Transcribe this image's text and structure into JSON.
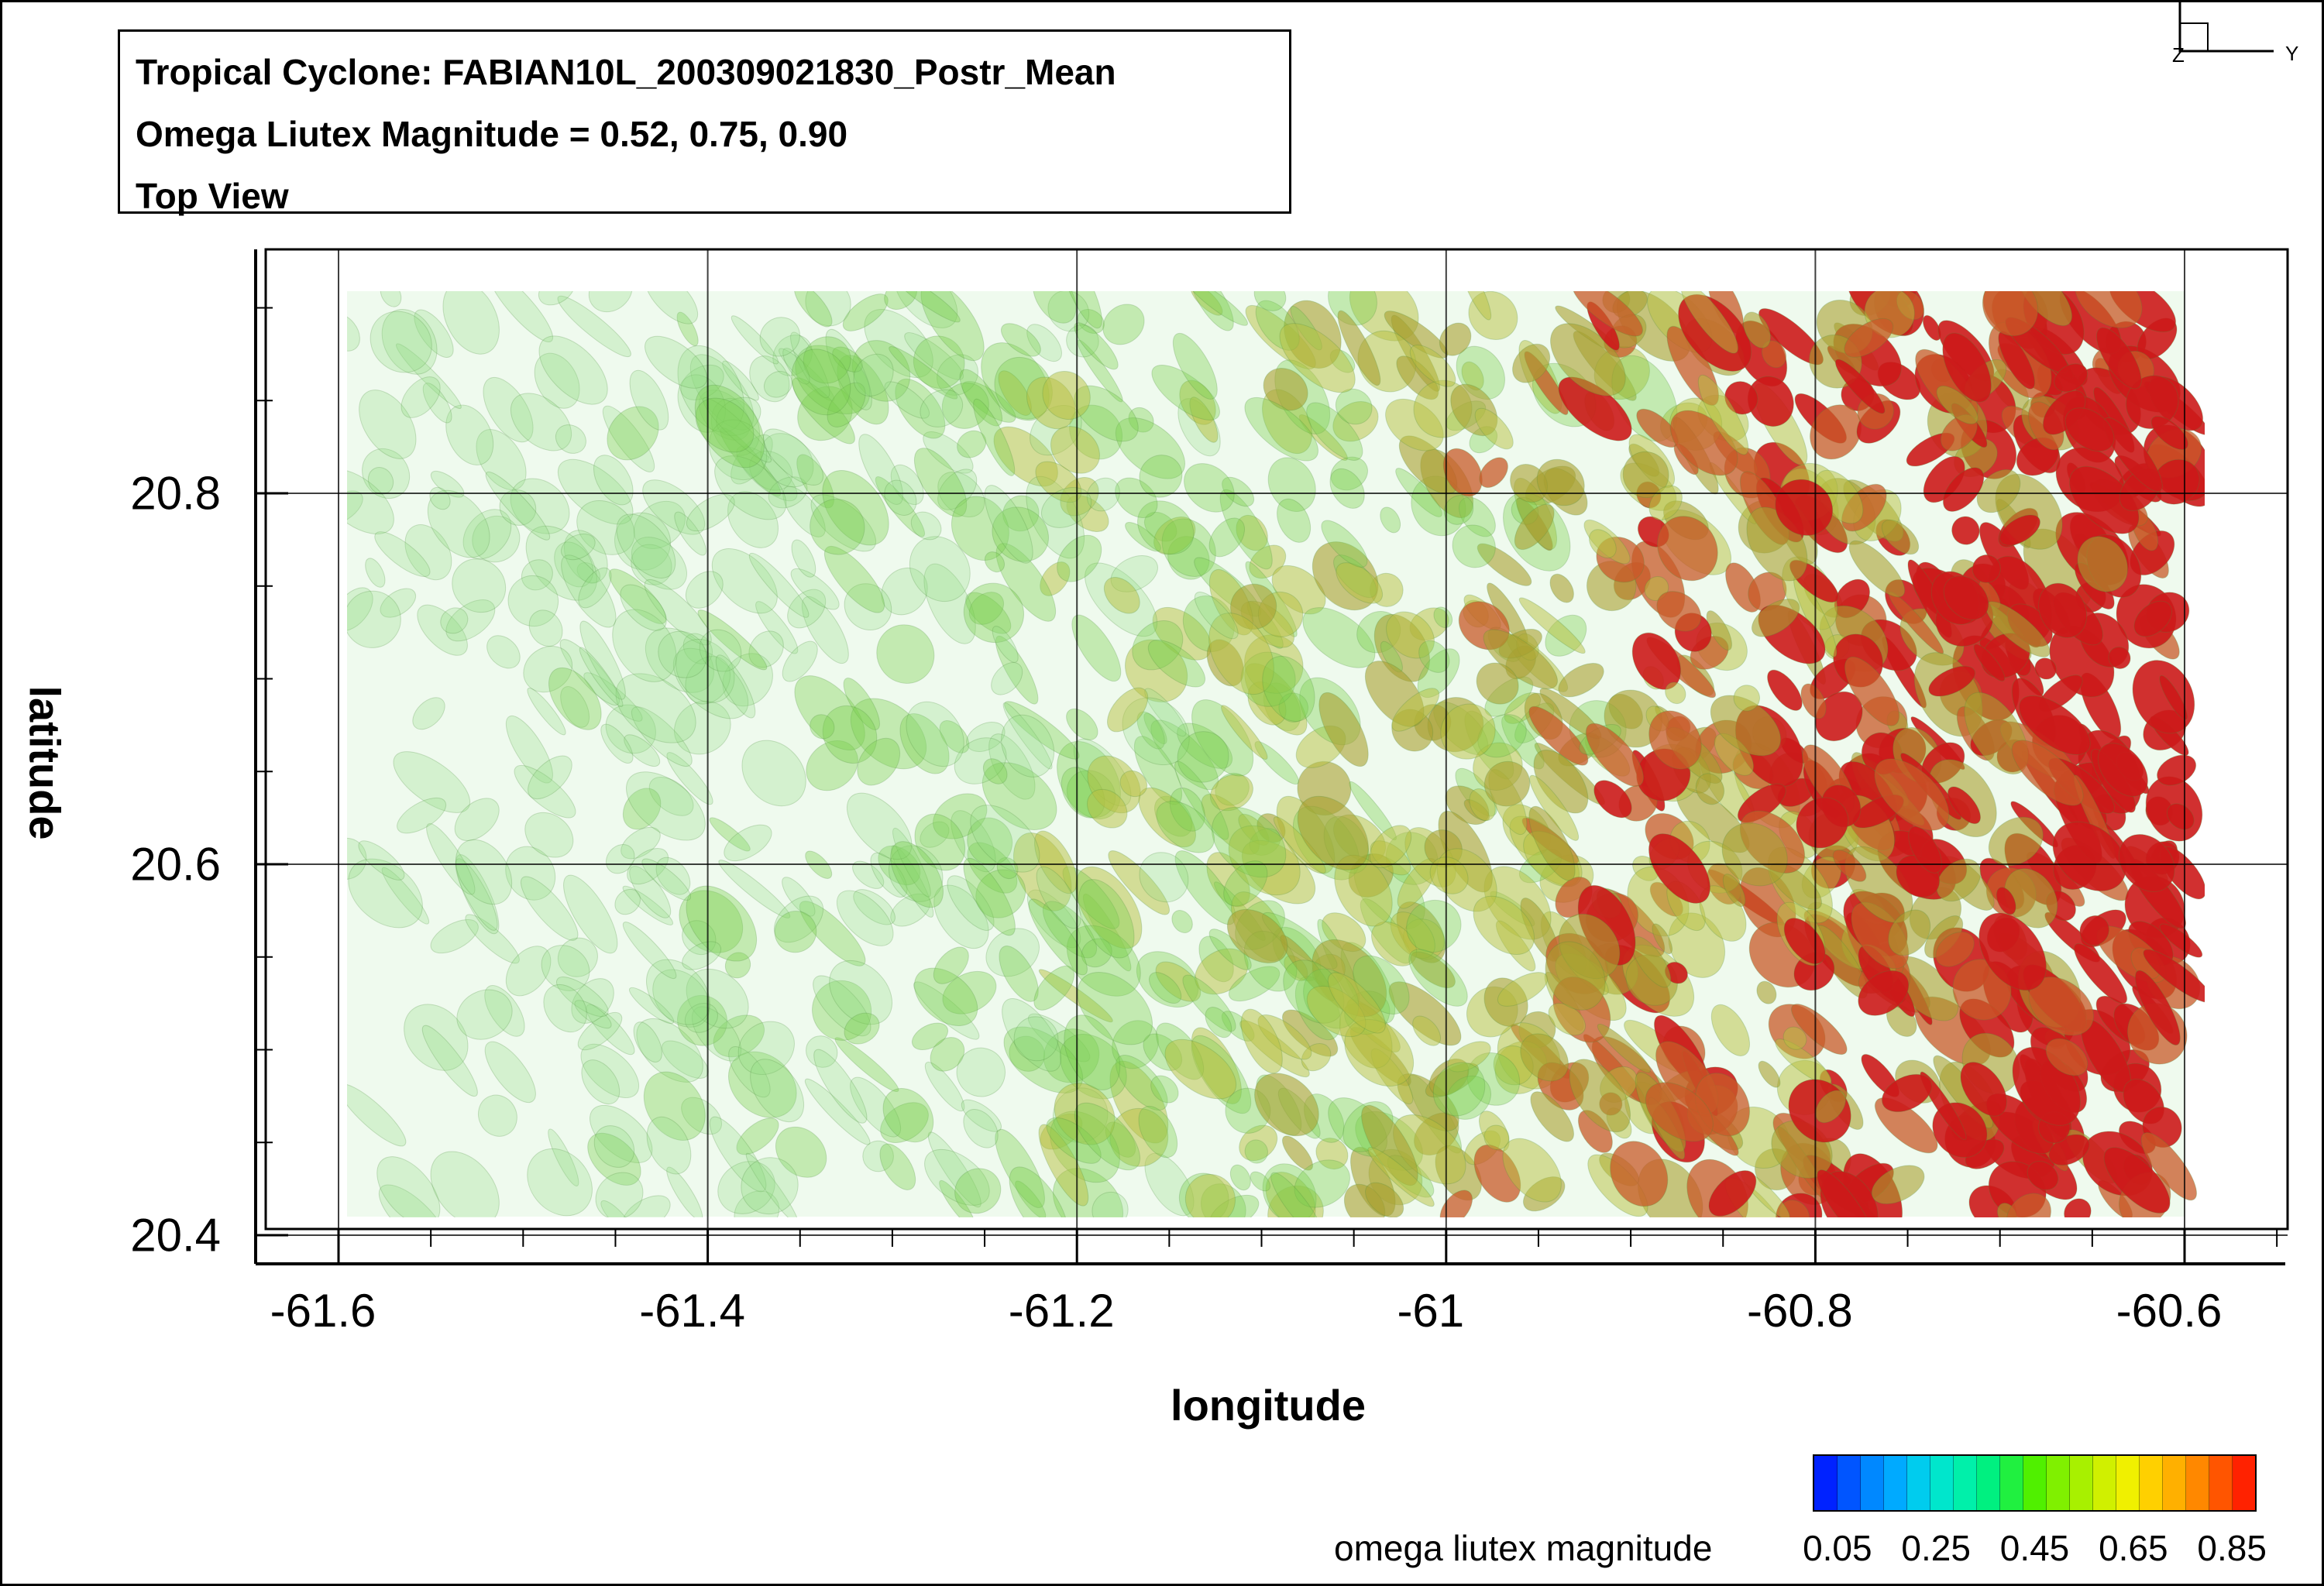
{
  "title_box": {
    "line1": "Tropical Cyclone: FABIAN10L_200309021830_Postr_Mean",
    "line2": "Omega Liutex Magnitude = 0.52, 0.75, 0.90",
    "line3": "Top View"
  },
  "axis_triad": {
    "z_label": "Z",
    "y_label": "Y"
  },
  "chart_data": {
    "type": "isosurface-field",
    "xlabel": "longitude",
    "ylabel": "latitude",
    "xlim": [
      -61.65,
      -60.52
    ],
    "ylim": [
      20.39,
      20.93
    ],
    "x_ticks": [
      "-61.6",
      "-61.4",
      "-61.2",
      "-61",
      "-60.8",
      "-60.6"
    ],
    "x_tick_values": [
      -61.6,
      -61.4,
      -61.2,
      -61.0,
      -60.8,
      -60.6
    ],
    "y_ticks": [
      "20.4",
      "20.6",
      "20.8"
    ],
    "y_tick_values": [
      20.4,
      20.6,
      20.8
    ],
    "iso_levels": [
      0.52,
      0.75,
      0.9
    ],
    "grid": true,
    "data_extent": {
      "x": [
        -61.6,
        -60.6
      ],
      "y": [
        20.41,
        20.91
      ]
    }
  },
  "legend": {
    "title": "omega liutex magnitude",
    "ticks": [
      "0.05",
      "0.25",
      "0.45",
      "0.65",
      "0.85"
    ],
    "tick_values": [
      0.05,
      0.25,
      0.45,
      0.65,
      0.85
    ],
    "range": [
      0.0,
      0.9
    ],
    "colors": [
      "#0022ff",
      "#0055ff",
      "#0088ff",
      "#00aaff",
      "#00ccee",
      "#00e6cc",
      "#00f0aa",
      "#00f080",
      "#20f040",
      "#50f000",
      "#80f000",
      "#a8f000",
      "#d0f000",
      "#f0f000",
      "#ffd000",
      "#ffb000",
      "#ff8800",
      "#ff5500",
      "#ff2200"
    ]
  }
}
